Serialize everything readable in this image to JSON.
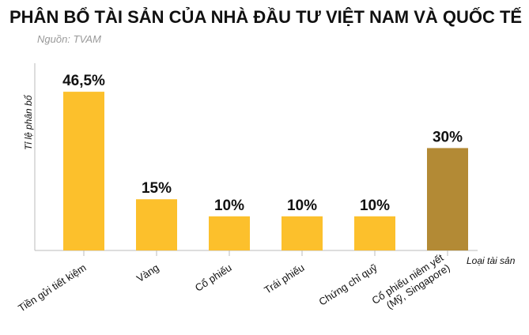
{
  "chart_data": {
    "type": "bar",
    "title": "PHÂN BỔ TÀI SẢN CỦA NHÀ ĐẦU TƯ VIỆT NAM VÀ QUỐC TẾ",
    "source": "Nguồn: TVAM",
    "y_label": "Tỉ lệ phân bổ",
    "x_label": "Loại tài sản",
    "categories": [
      "Tiền gửi tiết kiệm",
      "Vàng",
      "Cổ phiếu",
      "Trái phiếu",
      "Chứng chỉ quỹ",
      "Cổ phiếu niêm yết\n(Mỹ, Singapore)"
    ],
    "values": [
      46.5,
      15,
      10,
      10,
      10,
      30
    ],
    "value_labels": [
      "46,5%",
      "15%",
      "10%",
      "10%",
      "10%",
      "30%"
    ],
    "colors": [
      "#fcc02c",
      "#fcc02c",
      "#fcc02c",
      "#fcc02c",
      "#fcc02c",
      "#b38a35"
    ]
  }
}
